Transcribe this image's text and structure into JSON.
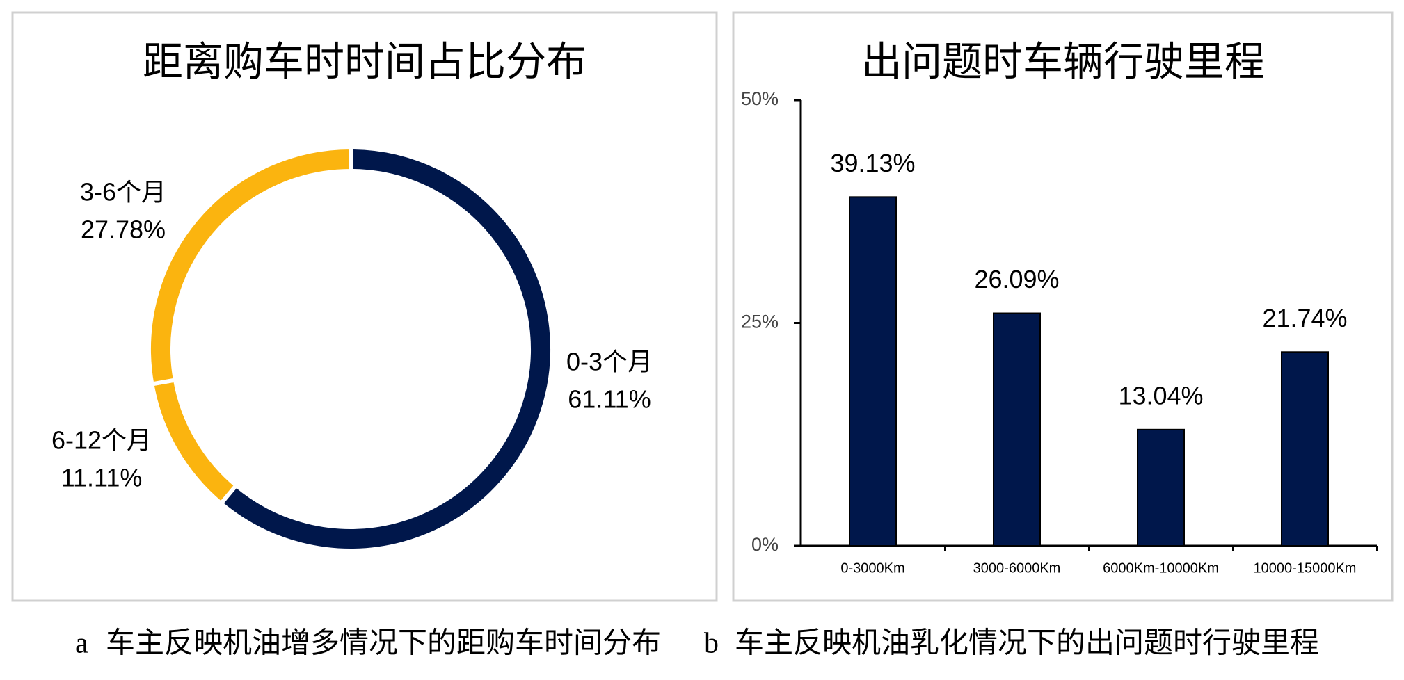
{
  "chart_data": [
    {
      "type": "pie",
      "title": "距离购车时时间占比分布",
      "categories": [
        "0-3个月",
        "6-12个月",
        "3-6个月"
      ],
      "values": [
        61.11,
        11.11,
        27.78
      ],
      "value_labels": [
        "61.11%",
        "11.11%",
        "27.78%"
      ],
      "colors": [
        "#00174b",
        "#fbb40f",
        "#fbb40f"
      ],
      "caption_label": "a",
      "caption": "车主反映机油增多情况下的距购车时间分布"
    },
    {
      "type": "bar",
      "title": "出问题时车辆行驶里程",
      "categories": [
        "0-3000Km",
        "3000-6000Km",
        "6000Km-10000Km",
        "10000-15000Km"
      ],
      "values": [
        39.13,
        26.09,
        13.04,
        21.74
      ],
      "value_labels": [
        "39.13%",
        "26.09%",
        "13.04%",
        "21.74%"
      ],
      "color": "#00174b",
      "ylim": [
        0,
        50
      ],
      "yticks": [
        {
          "value": 0,
          "label": "0%"
        },
        {
          "value": 25,
          "label": "25%"
        },
        {
          "value": 50,
          "label": "50%"
        }
      ],
      "caption_label": "b",
      "caption": "车主反映机油乳化情况下的出问题时行驶里程"
    }
  ]
}
